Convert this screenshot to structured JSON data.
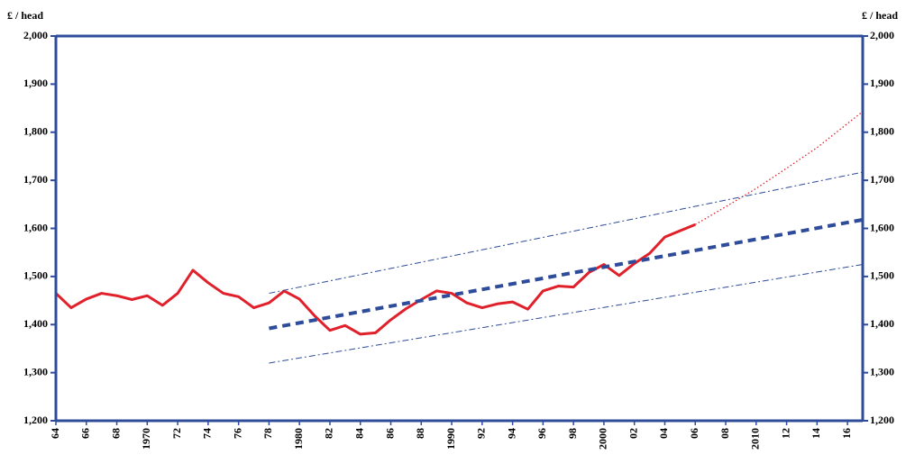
{
  "chart_data": {
    "type": "line",
    "y_label": "£ / head",
    "y2_label": "£ / head",
    "xlim": [
      1964,
      2017
    ],
    "ylim": [
      1200,
      2000
    ],
    "y2lim": [
      1200,
      2000
    ],
    "yticks": [
      {
        "value": 1200,
        "label": "1,200"
      },
      {
        "value": 1300,
        "label": "1,300"
      },
      {
        "value": 1400,
        "label": "1,400"
      },
      {
        "value": 1500,
        "label": "1,500"
      },
      {
        "value": 1600,
        "label": "1,600"
      },
      {
        "value": 1700,
        "label": "1,700"
      },
      {
        "value": 1800,
        "label": "1,800"
      },
      {
        "value": 1900,
        "label": "1,900"
      },
      {
        "value": 2000,
        "label": "2,000"
      }
    ],
    "y2ticks": [
      {
        "value": 1200,
        "label": "1,200"
      },
      {
        "value": 1300,
        "label": "1,300"
      },
      {
        "value": 1400,
        "label": "1,400"
      },
      {
        "value": 1500,
        "label": "1,500"
      },
      {
        "value": 1600,
        "label": "1,600"
      },
      {
        "value": 1700,
        "label": "1,700"
      },
      {
        "value": 1800,
        "label": "1,800"
      },
      {
        "value": 1900,
        "label": "1,900"
      },
      {
        "value": 2000,
        "label": "2,000"
      }
    ],
    "xticks": [
      {
        "value": 1964,
        "label": "64"
      },
      {
        "value": 1966,
        "label": "66"
      },
      {
        "value": 1968,
        "label": "68"
      },
      1970,
      {
        "value": 1972,
        "label": "72"
      },
      {
        "value": 1974,
        "label": "74"
      },
      {
        "value": 1976,
        "label": "76"
      },
      {
        "value": 1978,
        "label": "78"
      },
      1980,
      {
        "value": 1982,
        "label": "82"
      },
      {
        "value": 1984,
        "label": "84"
      },
      {
        "value": 1986,
        "label": "86"
      },
      {
        "value": 1988,
        "label": "88"
      },
      1990,
      {
        "value": 1992,
        "label": "92"
      },
      {
        "value": 1994,
        "label": "94"
      },
      {
        "value": 1996,
        "label": "96"
      },
      {
        "value": 1998,
        "label": "98"
      },
      2000,
      {
        "value": 2002,
        "label": "02"
      },
      {
        "value": 2004,
        "label": "04"
      },
      {
        "value": 2006,
        "label": "06"
      },
      {
        "value": 2008,
        "label": "08"
      },
      2010,
      {
        "value": 2012,
        "label": "12"
      },
      {
        "value": 2014,
        "label": "14"
      },
      {
        "value": 2016,
        "label": "16"
      }
    ],
    "axis_color": "#2e4c9a",
    "series": [
      {
        "color": "#e0202a",
        "linestyle": "solid",
        "x": [
          1964,
          1965,
          1966,
          1967,
          1968,
          1969,
          1970,
          1971,
          1972,
          1973,
          1974,
          1975,
          1976,
          1977,
          1978,
          1979,
          1980,
          1981,
          1982,
          1983,
          1984,
          1985,
          1986,
          1987,
          1988,
          1989,
          1990,
          1991,
          1992,
          1993,
          1994,
          1995,
          1996,
          1997,
          1998,
          1999,
          2000,
          2001,
          2002,
          2003,
          2004,
          2005,
          2006
        ],
        "values": [
          1465,
          1435,
          1453,
          1465,
          1460,
          1452,
          1460,
          1440,
          1465,
          1513,
          1487,
          1465,
          1458,
          1435,
          1445,
          1470,
          1453,
          1418,
          1388,
          1398,
          1380,
          1383,
          1410,
          1433,
          1452,
          1470,
          1465,
          1445,
          1435,
          1443,
          1447,
          1432,
          1470,
          1480,
          1478,
          1508,
          1525,
          1502,
          1527,
          1548,
          1582,
          1595,
          1608
        ]
      },
      {
        "color": "#e0202a",
        "linestyle": "dotted",
        "x": [
          2006,
          2008,
          2010,
          2012,
          2014,
          2016,
          2017
        ],
        "values": [
          1608,
          1645,
          1683,
          1725,
          1768,
          1818,
          1843
        ]
      },
      {
        "color": "#2e4c9a",
        "linestyle": "dashed",
        "x": [
          1978,
          2017
        ],
        "values": [
          1392,
          1618
        ]
      },
      {
        "color": "#2e4c9a",
        "linestyle": "dashdot",
        "x": [
          1978,
          2017
        ],
        "values": [
          1465,
          1717
        ]
      },
      {
        "color": "#2e4c9a",
        "linestyle": "dashdot",
        "x": [
          1978,
          2017
        ],
        "values": [
          1320,
          1525
        ]
      }
    ]
  }
}
